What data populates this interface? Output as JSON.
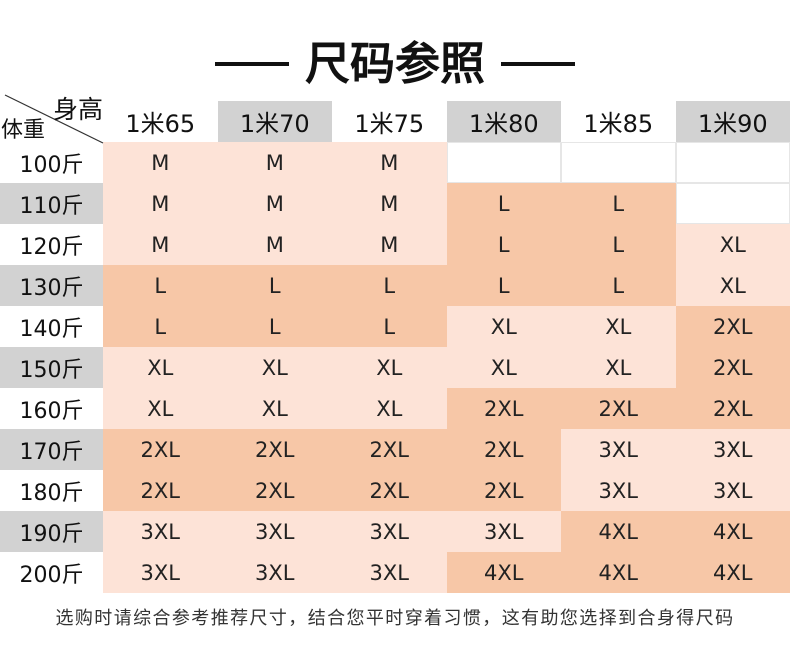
{
  "chart_data": {
    "type": "table",
    "title": "尺码参照",
    "column_header_label": "身高",
    "row_header_label": "体重",
    "columns": [
      "1米65",
      "1米70",
      "1米75",
      "1米80",
      "1米85",
      "1米90"
    ],
    "rows": [
      {
        "label": "100斤",
        "values": [
          "M",
          "M",
          "M",
          "",
          "",
          ""
        ]
      },
      {
        "label": "110斤",
        "values": [
          "M",
          "M",
          "M",
          "L",
          "L",
          ""
        ]
      },
      {
        "label": "120斤",
        "values": [
          "M",
          "M",
          "M",
          "L",
          "L",
          "XL"
        ]
      },
      {
        "label": "130斤",
        "values": [
          "L",
          "L",
          "L",
          "L",
          "L",
          "XL"
        ]
      },
      {
        "label": "140斤",
        "values": [
          "L",
          "L",
          "L",
          "XL",
          "XL",
          "2XL"
        ]
      },
      {
        "label": "150斤",
        "values": [
          "XL",
          "XL",
          "XL",
          "XL",
          "XL",
          "2XL"
        ]
      },
      {
        "label": "160斤",
        "values": [
          "XL",
          "XL",
          "XL",
          "2XL",
          "2XL",
          "2XL"
        ]
      },
      {
        "label": "170斤",
        "values": [
          "2XL",
          "2XL",
          "2XL",
          "2XL",
          "3XL",
          "3XL"
        ]
      },
      {
        "label": "180斤",
        "values": [
          "2XL",
          "2XL",
          "2XL",
          "2XL",
          "3XL",
          "3XL"
        ]
      },
      {
        "label": "190斤",
        "values": [
          "3XL",
          "3XL",
          "3XL",
          "3XL",
          "4XL",
          "4XL"
        ]
      },
      {
        "label": "200斤",
        "values": [
          "3XL",
          "3XL",
          "3XL",
          "4XL",
          "4XL",
          "4XL"
        ]
      }
    ]
  },
  "footer_note": "选购时请综合参考推荐尺寸，结合您平时穿着习惯，这有助您选择到合身得尺码",
  "colors": {
    "cell_light": "#fde3d7",
    "cell_dark": "#f7c7a7",
    "header_grey": "#d2d2d2",
    "text": "#1a1a1a"
  }
}
